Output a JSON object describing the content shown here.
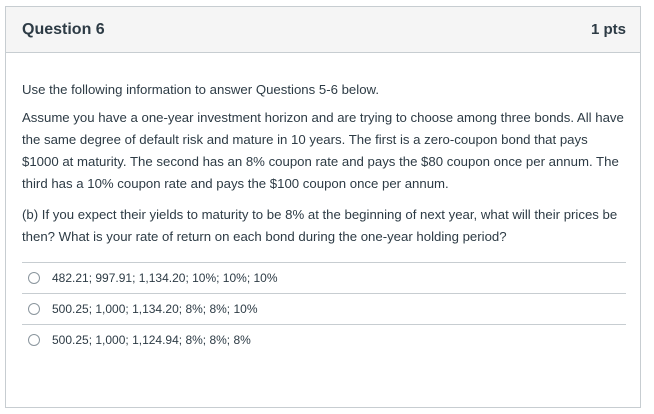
{
  "question": {
    "title": "Question 6",
    "points": "1 pts"
  },
  "body": {
    "intro": "Use the following information to answer Questions 5-6 below.",
    "scenario": "Assume you have a one-year investment horizon and are trying to choose among three bonds. All have the same degree of default risk and mature in 10 years. The first is a zero-coupon bond that pays $1000 at maturity. The second has an 8% coupon rate and pays the $80 coupon once per annum. The third has a 10% coupon rate and pays the $100 coupon once per annum.",
    "prompt": "(b) If you expect their yields to maturity to be 8% at the beginning of next year, what will their prices be then? What is your rate of return on each bond during the one-year holding period?"
  },
  "answers": [
    {
      "label": "482.21; 997.91; 1,134.20; 10%; 10%; 10%"
    },
    {
      "label": "500.25; 1,000; 1,134.20; 8%; 8%; 10%"
    },
    {
      "label": "500.25; 1,000; 1,124.94; 8%; 8%; 8%"
    }
  ]
}
